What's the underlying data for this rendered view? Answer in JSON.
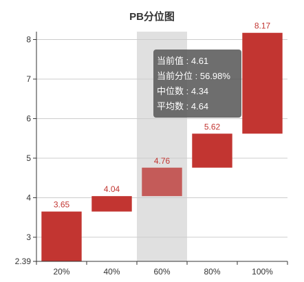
{
  "chart_data": {
    "type": "bar",
    "subtype": "floating-range",
    "title": "PB分位图",
    "categories": [
      "20%",
      "40%",
      "60%",
      "80%",
      "100%"
    ],
    "ranges": [
      {
        "low": 2.39,
        "high": 3.65
      },
      {
        "low": 3.65,
        "high": 4.04
      },
      {
        "low": 4.04,
        "high": 4.76
      },
      {
        "low": 4.76,
        "high": 5.62
      },
      {
        "low": 5.62,
        "high": 8.17
      }
    ],
    "value_labels": [
      "3.65",
      "4.04",
      "4.76",
      "5.62",
      "8.17"
    ],
    "ylim": [
      2.39,
      8.2
    ],
    "yticks": [
      "2.39",
      "3",
      "4",
      "5",
      "6",
      "7",
      "8"
    ],
    "grid": true,
    "highlighted_category": "60%",
    "colors": {
      "bar": "#c23531",
      "bar_highlight": "#c45b59",
      "highlight_band": "#e0e0e0",
      "label": "#c23531"
    },
    "tooltip": {
      "rows": [
        {
          "label": "当前值",
          "value": "4.61"
        },
        {
          "label": "当前分位",
          "value": "56.98%"
        },
        {
          "label": "中位数",
          "value": "4.34"
        },
        {
          "label": "平均数",
          "value": "4.64"
        }
      ]
    }
  }
}
